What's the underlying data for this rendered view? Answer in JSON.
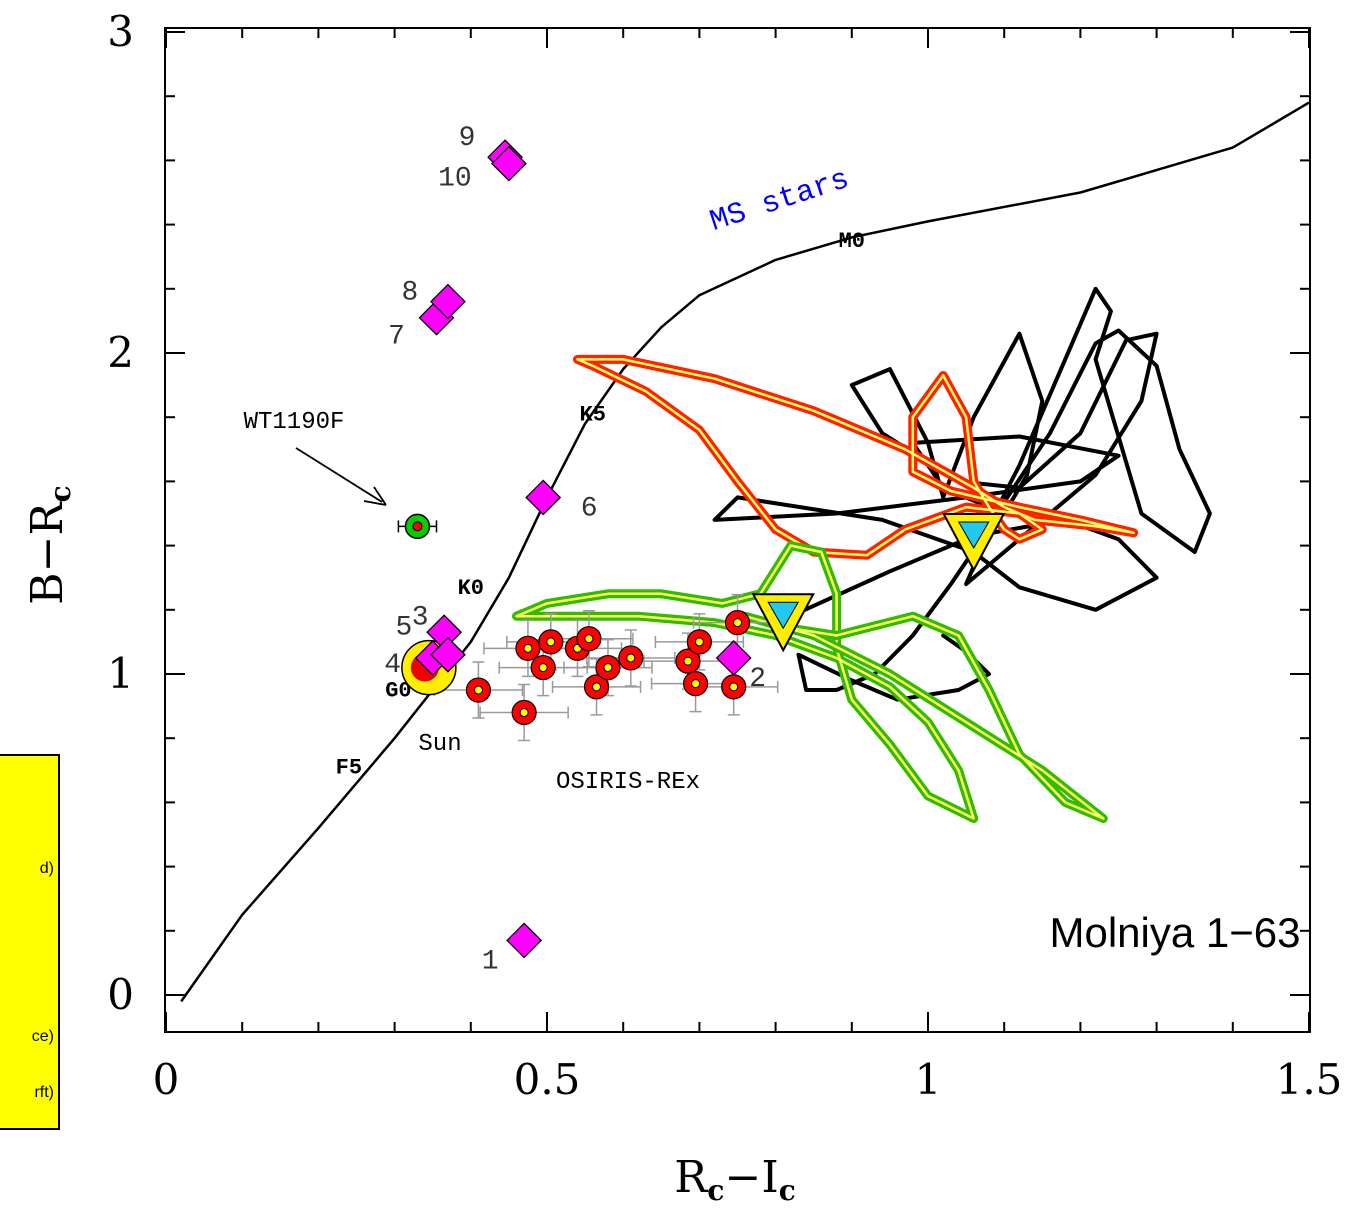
{
  "chart_data": {
    "type": "scatter",
    "title": "Molniya 1−63",
    "xlabel": "Rₑ−Iₑ",
    "ylabel": "B−Rₑ",
    "xlabel_parts": {
      "a": "R",
      "a_sub": "c",
      "op": "−",
      "b": "I",
      "b_sub": "c"
    },
    "ylabel_parts": {
      "a": "B",
      "op": "−",
      "b": "R",
      "b_sub": "c"
    },
    "xlim": [
      0,
      1.5
    ],
    "ylim": [
      -0.2,
      3.0
    ],
    "x_ticks": [
      "0",
      "0.5",
      "1",
      "1.5"
    ],
    "y_ticks": [
      "0",
      "1",
      "2",
      "3"
    ],
    "main_sequence": {
      "label": "MS stars",
      "points": [
        [
          0.02,
          -0.02
        ],
        [
          0.1,
          0.25
        ],
        [
          0.2,
          0.52
        ],
        [
          0.3,
          0.8
        ],
        [
          0.36,
          0.98
        ],
        [
          0.4,
          1.1
        ],
        [
          0.45,
          1.3
        ],
        [
          0.5,
          1.55
        ],
        [
          0.55,
          1.78
        ],
        [
          0.6,
          1.95
        ],
        [
          0.65,
          2.08
        ],
        [
          0.7,
          2.18
        ],
        [
          0.8,
          2.29
        ],
        [
          0.9,
          2.36
        ],
        [
          1.0,
          2.41
        ],
        [
          1.2,
          2.5
        ],
        [
          1.4,
          2.64
        ],
        [
          1.5,
          2.78
        ]
      ],
      "spectral_types": [
        {
          "label": "F5",
          "x": 0.24,
          "y": 0.69
        },
        {
          "label": "G0",
          "x": 0.305,
          "y": 0.93
        },
        {
          "label": "K0",
          "x": 0.4,
          "y": 1.25
        },
        {
          "label": "K5",
          "x": 0.56,
          "y": 1.79
        },
        {
          "label": "M0",
          "x": 0.9,
          "y": 2.33
        }
      ]
    },
    "sun": {
      "label": "Sun",
      "x": 0.345,
      "y": 1.02
    },
    "wt1190f": {
      "label": "WT1190F",
      "x": 0.33,
      "y": 1.46,
      "xerr": 0.025
    },
    "numbered_targets": [
      {
        "label": "1",
        "x": 0.47,
        "y": 0.17
      },
      {
        "label": "2",
        "x": 0.745,
        "y": 1.05
      },
      {
        "label": "3",
        "x": 0.365,
        "y": 1.13
      },
      {
        "label": "4",
        "x": 0.35,
        "y": 1.05
      },
      {
        "label": "5",
        "x": 0.37,
        "y": 1.06
      },
      {
        "label": "6",
        "x": 0.495,
        "y": 1.55
      },
      {
        "label": "7",
        "x": 0.355,
        "y": 2.11
      },
      {
        "label": "8",
        "x": 0.37,
        "y": 2.16
      },
      {
        "label": "9",
        "x": 0.445,
        "y": 2.61
      },
      {
        "label": "10",
        "x": 0.45,
        "y": 2.59
      }
    ],
    "osiris_rex": {
      "label": "OSIRIS-REx",
      "points": [
        [
          0.41,
          0.95
        ],
        [
          0.47,
          0.88
        ],
        [
          0.475,
          1.08
        ],
        [
          0.495,
          1.02
        ],
        [
          0.505,
          1.1
        ],
        [
          0.54,
          1.08
        ],
        [
          0.555,
          1.11
        ],
        [
          0.565,
          0.96
        ],
        [
          0.58,
          1.02
        ],
        [
          0.61,
          1.05
        ],
        [
          0.685,
          1.04
        ],
        [
          0.695,
          0.97
        ],
        [
          0.7,
          1.1
        ],
        [
          0.745,
          0.96
        ],
        [
          0.75,
          1.16
        ]
      ]
    },
    "triangles": [
      {
        "x": 0.81,
        "y": 1.18
      },
      {
        "x": 1.06,
        "y": 1.43
      }
    ],
    "tracks": {
      "black": [
        [
          0.82,
          1.18
        ],
        [
          0.95,
          1.32
        ],
        [
          1.06,
          1.43
        ],
        [
          1.18,
          1.48
        ],
        [
          1.25,
          1.42
        ],
        [
          1.3,
          1.3
        ],
        [
          1.22,
          1.2
        ],
        [
          1.12,
          1.27
        ],
        [
          1.06,
          1.38
        ],
        [
          0.94,
          1.48
        ],
        [
          0.75,
          1.55
        ],
        [
          0.72,
          1.48
        ],
        [
          0.88,
          1.5
        ],
        [
          1.05,
          1.55
        ],
        [
          1.2,
          1.6
        ],
        [
          1.25,
          1.68
        ],
        [
          1.12,
          1.74
        ],
        [
          0.98,
          1.72
        ],
        [
          1.02,
          1.58
        ],
        [
          1.1,
          1.5
        ],
        [
          1.13,
          1.62
        ],
        [
          1.15,
          1.85
        ],
        [
          1.12,
          2.06
        ],
        [
          1.06,
          1.8
        ],
        [
          1.02,
          1.55
        ],
        [
          1.0,
          1.72
        ],
        [
          0.95,
          1.95
        ],
        [
          0.9,
          1.9
        ],
        [
          0.94,
          1.75
        ],
        [
          1.04,
          1.6
        ],
        [
          1.12,
          1.58
        ],
        [
          1.2,
          1.75
        ],
        [
          1.26,
          2.04
        ],
        [
          1.3,
          2.06
        ],
        [
          1.28,
          1.85
        ],
        [
          1.22,
          1.62
        ],
        [
          1.12,
          1.42
        ],
        [
          1.05,
          1.28
        ],
        [
          1.09,
          1.5
        ],
        [
          1.16,
          1.75
        ],
        [
          1.22,
          2.03
        ],
        [
          1.25,
          2.07
        ],
        [
          1.3,
          1.96
        ],
        [
          1.33,
          1.7
        ],
        [
          1.37,
          1.5
        ],
        [
          1.35,
          1.38
        ],
        [
          1.28,
          1.5
        ],
        [
          1.22,
          1.98
        ],
        [
          1.24,
          2.13
        ],
        [
          1.22,
          2.2
        ],
        [
          1.18,
          1.98
        ],
        [
          1.12,
          1.65
        ],
        [
          1.07,
          1.42
        ],
        [
          1.03,
          1.28
        ],
        [
          0.98,
          1.12
        ],
        [
          0.93,
          1.0
        ],
        [
          0.88,
          0.95
        ],
        [
          0.84,
          0.95
        ],
        [
          0.83,
          1.06
        ],
        [
          0.9,
          0.98
        ],
        [
          0.96,
          0.92
        ],
        [
          1.04,
          0.95
        ],
        [
          1.08,
          1.0
        ],
        [
          1.05,
          1.07
        ],
        [
          1.02,
          1.12
        ]
      ],
      "red": [
        [
          0.54,
          1.98
        ],
        [
          0.6,
          1.98
        ],
        [
          0.72,
          1.92
        ],
        [
          0.85,
          1.82
        ],
        [
          0.97,
          1.7
        ],
        [
          1.06,
          1.58
        ],
        [
          1.1,
          1.52
        ],
        [
          1.14,
          1.48
        ],
        [
          1.22,
          1.46
        ],
        [
          1.27,
          1.44
        ],
        [
          1.2,
          1.48
        ],
        [
          1.12,
          1.52
        ],
        [
          1.03,
          1.57
        ],
        [
          0.98,
          1.63
        ],
        [
          0.98,
          1.8
        ],
        [
          1.02,
          1.93
        ],
        [
          1.05,
          1.8
        ],
        [
          1.06,
          1.6
        ],
        [
          1.08,
          1.52
        ],
        [
          1.1,
          1.45
        ],
        [
          1.12,
          1.42
        ],
        [
          1.15,
          1.45
        ],
        [
          1.12,
          1.5
        ],
        [
          1.05,
          1.52
        ],
        [
          0.97,
          1.45
        ],
        [
          0.92,
          1.37
        ],
        [
          0.85,
          1.38
        ],
        [
          0.8,
          1.45
        ],
        [
          0.75,
          1.6
        ],
        [
          0.7,
          1.76
        ],
        [
          0.63,
          1.88
        ],
        [
          0.56,
          1.96
        ],
        [
          0.54,
          1.98
        ]
      ],
      "green": [
        [
          0.46,
          1.18
        ],
        [
          0.5,
          1.22
        ],
        [
          0.58,
          1.25
        ],
        [
          0.65,
          1.25
        ],
        [
          0.73,
          1.22
        ],
        [
          0.78,
          1.25
        ],
        [
          0.82,
          1.4
        ],
        [
          0.86,
          1.38
        ],
        [
          0.88,
          1.25
        ],
        [
          0.88,
          1.08
        ],
        [
          0.9,
          0.92
        ],
        [
          0.95,
          0.78
        ],
        [
          1.0,
          0.62
        ],
        [
          1.06,
          0.55
        ],
        [
          1.04,
          0.7
        ],
        [
          1.0,
          0.85
        ],
        [
          0.95,
          0.96
        ],
        [
          0.88,
          1.05
        ],
        [
          0.8,
          1.12
        ],
        [
          0.72,
          1.16
        ],
        [
          0.62,
          1.18
        ],
        [
          0.53,
          1.18
        ],
        [
          0.46,
          1.18
        ]
      ],
      "green_tail": [
        [
          0.76,
          1.18
        ],
        [
          0.85,
          1.12
        ],
        [
          0.95,
          1.0
        ],
        [
          1.05,
          0.85
        ],
        [
          1.15,
          0.7
        ],
        [
          1.23,
          0.55
        ],
        [
          1.18,
          0.6
        ],
        [
          1.12,
          0.75
        ],
        [
          1.08,
          0.95
        ],
        [
          1.04,
          1.12
        ],
        [
          0.98,
          1.18
        ],
        [
          0.88,
          1.12
        ],
        [
          0.8,
          1.15
        ]
      ]
    },
    "colors": {
      "diamond": "#ff00ff",
      "osiris_fill": "#ff0000",
      "osiris_center": "#ffff00",
      "wt_fill": "#00cc00",
      "wt_center": "#ff0000",
      "triangle_fill": "#ffee00",
      "triangle_inner": "#22c8ee",
      "red_track": "#ff2200",
      "green_track": "#33bb00",
      "ms_label": "#0000ff"
    }
  },
  "legend": {
    "lines": [
      "d)",
      "ce)",
      "rft)"
    ]
  }
}
